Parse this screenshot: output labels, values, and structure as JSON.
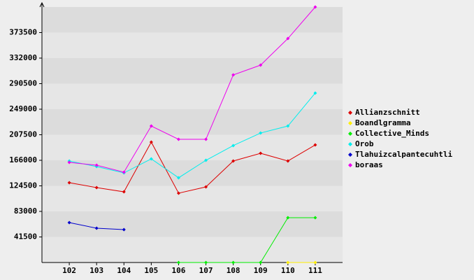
{
  "chart_data": {
    "type": "line",
    "x": [
      102,
      103,
      104,
      105,
      106,
      107,
      108,
      109,
      110,
      111
    ],
    "xlim": [
      101,
      112
    ],
    "xticks": [
      102,
      103,
      104,
      105,
      106,
      107,
      108,
      109,
      110,
      111
    ],
    "ylim": [
      0,
      415000
    ],
    "yticks": [
      41500,
      83000,
      124500,
      166000,
      207500,
      249000,
      290500,
      332000,
      373500
    ],
    "grid": true,
    "legend": "right",
    "series": [
      {
        "name": "Allianzschnitt",
        "color": "#dd0000",
        "values": [
          129600,
          121700,
          114800,
          195600,
          112600,
          122800,
          164900,
          177400,
          164900,
          191000
        ]
      },
      {
        "name": "Boandlgramma",
        "color": "#ffee00",
        "values": [
          null,
          null,
          null,
          null,
          null,
          null,
          null,
          null,
          0,
          0
        ]
      },
      {
        "name": "Collective_Minds",
        "color": "#00ee00",
        "values": [
          null,
          null,
          null,
          null,
          0,
          0,
          0,
          0,
          72800,
          72800
        ]
      },
      {
        "name": "Orob",
        "color": "#00eeee",
        "values": [
          164900,
          155800,
          145500,
          168300,
          137600,
          166000,
          189900,
          210300,
          221700,
          275200
        ]
      },
      {
        "name": "Tlahuizcalpantecuhtli",
        "color": "#0000cc",
        "values": [
          64800,
          55700,
          53400,
          null,
          null,
          null,
          null,
          null,
          null,
          null
        ]
      },
      {
        "name": "boraas",
        "color": "#ee00ee",
        "values": [
          162600,
          158000,
          146700,
          221700,
          200100,
          200100,
          304700,
          320600,
          363800,
          415000
        ]
      }
    ]
  }
}
